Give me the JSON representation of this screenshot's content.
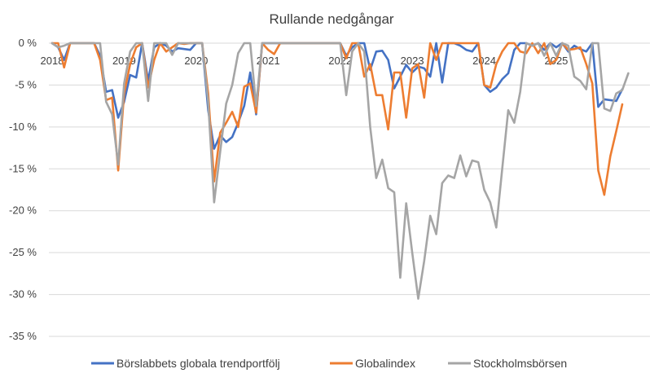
{
  "chart_data": {
    "type": "line",
    "title": "Rullande nedgångar",
    "xlabel": "",
    "ylabel": "",
    "ylim": [
      -35,
      0
    ],
    "yticks": [
      0,
      -5,
      -10,
      -15,
      -20,
      -25,
      -30,
      -35
    ],
    "ytick_labels": [
      "0 %",
      "-5 %",
      "-10 %",
      "-15 %",
      "-20 %",
      "-25 %",
      "-30 %",
      "-35 %"
    ],
    "x_tick_labels": [
      "2018",
      "2019",
      "2020",
      "2021",
      "2022",
      "2023",
      "2024",
      "2025"
    ],
    "x_tick_positions": [
      0,
      12,
      24,
      36,
      48,
      60,
      72,
      84
    ],
    "grid": true,
    "legend_position": "bottom",
    "series": [
      {
        "name": "Börslabbets globala trendportfölj",
        "color": "#4472C4",
        "values": [
          0,
          -0.5,
          -2,
          0,
          0,
          0,
          0,
          0,
          -1.5,
          -5.8,
          -5.6,
          -8.9,
          -7,
          -3.8,
          -4.1,
          0,
          -4.5,
          -0.5,
          0,
          -0.3,
          -1,
          -0.6,
          -0.7,
          -0.8,
          0,
          0,
          -8,
          -12.6,
          -11,
          -11.8,
          -11.2,
          -9.5,
          -7.5,
          -3.5,
          -8.5,
          0,
          0,
          0,
          0,
          0,
          0,
          0,
          0,
          0,
          0,
          0,
          0,
          0,
          0,
          -1.5,
          -0.5,
          0,
          0,
          -3.2,
          -1,
          -0.9,
          -2,
          -5.4,
          -4,
          -2.6,
          -3.5,
          -2.8,
          -3,
          -4,
          0,
          -4.7,
          0,
          0,
          -0.3,
          -0.8,
          -1,
          0,
          -5,
          -5.8,
          -5.3,
          -4.3,
          -3.6,
          -0.8,
          0,
          0,
          -0.3,
          0,
          -0.8,
          0,
          -0.5,
          0,
          -1,
          -0.3,
          -0.7,
          -1,
          0,
          -7.6,
          -6.7,
          -6.8,
          -6.9,
          -5.5
        ]
      },
      {
        "name": "Globalindex",
        "color": "#ED7D31",
        "values": [
          0,
          0,
          -2.9,
          0,
          0,
          0,
          0,
          0,
          -2,
          -6.8,
          -6.5,
          -15.2,
          -6,
          -2.5,
          -0.5,
          0,
          -5.3,
          -2,
          0,
          -1,
          -0.5,
          0,
          -0.1,
          0,
          0,
          0,
          -6,
          -16.5,
          -10.7,
          -9.5,
          -8.2,
          -10,
          -5.2,
          -4.8,
          -8.3,
          0,
          -0.8,
          -1.3,
          0,
          0,
          0,
          0,
          0,
          0,
          0,
          0,
          0,
          0,
          0,
          -1.8,
          0,
          0,
          -4,
          -2.5,
          -6.2,
          -6.2,
          -10.3,
          -3.5,
          -3.5,
          -8.9,
          -3,
          -2.5,
          -6.5,
          0,
          -2,
          0,
          0,
          0,
          0,
          0,
          0,
          0,
          -5,
          -5.3,
          -2.5,
          -1,
          0,
          0,
          -1,
          -1.2,
          0,
          -1.2,
          0,
          -2.5,
          -2,
          0,
          -0.8,
          -0.7,
          -0.5,
          -2.5,
          -4.8,
          -15.2,
          -18.1,
          -13.5,
          -10.5,
          -7.3
        ]
      },
      {
        "name": "Stockholmsbörsen",
        "color": "#A5A5A5",
        "values": [
          0,
          -0.5,
          -0.3,
          0,
          0,
          0,
          0,
          0,
          0,
          -7,
          -8.5,
          -14.5,
          -4.8,
          -1,
          0,
          0,
          -6.9,
          0,
          0,
          0,
          -1.4,
          0,
          0,
          0,
          0,
          0,
          -7,
          -19,
          -13,
          -7.2,
          -5,
          -1.2,
          0,
          0,
          -7.5,
          0,
          0,
          0,
          0,
          0,
          0,
          0,
          0,
          0,
          0,
          0,
          0,
          0,
          0,
          -6.2,
          -1,
          0,
          -1,
          -10,
          -16.1,
          -13.9,
          -17.3,
          -17.8,
          -28,
          -19.1,
          -25,
          -30.5,
          -26,
          -20.6,
          -22.8,
          -16.7,
          -15.8,
          -16.1,
          -13.4,
          -15.9,
          -14,
          -14.2,
          -17.5,
          -19,
          -22,
          -15,
          -8,
          -9.5,
          -5.8,
          0,
          -0.3,
          0,
          -1.5,
          0,
          -1.5,
          0,
          -0.3,
          -4,
          -4.5,
          -5.5,
          0,
          0,
          -7.8,
          -8.1,
          -6,
          -5.6,
          -3.6
        ]
      }
    ]
  }
}
